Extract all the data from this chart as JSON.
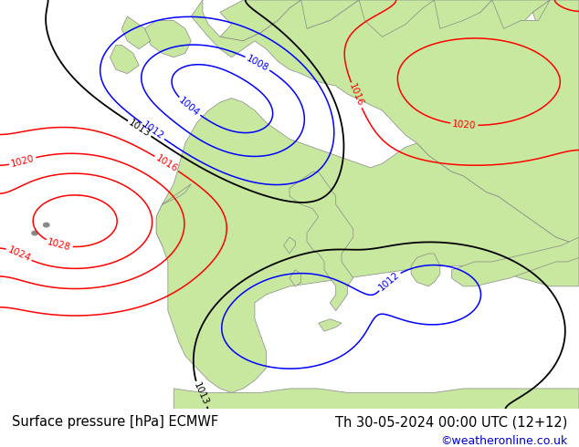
{
  "title_left": "Surface pressure [hPa] ECMWF",
  "title_right": "Th 30-05-2024 00:00 UTC (12+12)",
  "watermark": "©weatheronline.co.uk",
  "footer_bg": "#f0f0f0",
  "footer_text_color": "#000000",
  "watermark_color": "#0000cc",
  "title_fontsize": 10.5,
  "watermark_fontsize": 9,
  "figsize": [
    6.34,
    4.9
  ],
  "dpi": 100,
  "ocean_color": "#d8d8d8",
  "land_color": "#c8e8a0",
  "coast_color": "#888888",
  "blue": "#0000ff",
  "red": "#ff0000",
  "black": "#000000",
  "contour_lw": 1.1,
  "label_fontsize": 7.5
}
